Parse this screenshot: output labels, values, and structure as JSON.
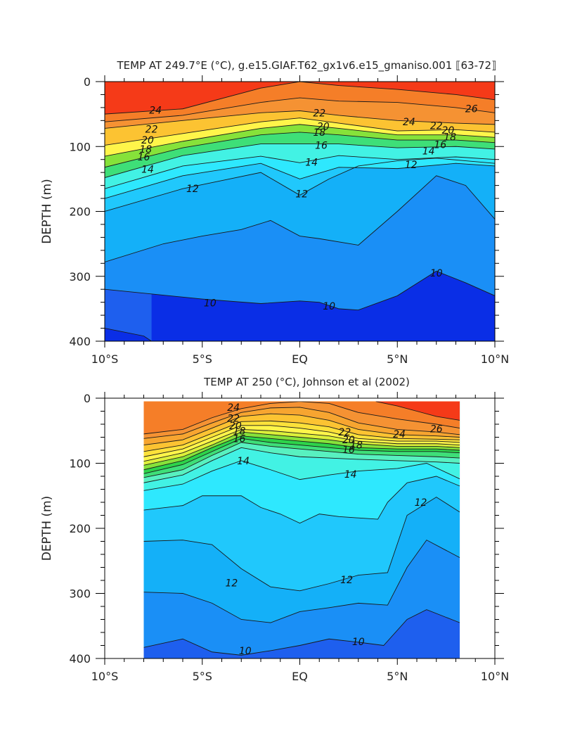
{
  "chart_data": [
    {
      "type": "contour",
      "title": "TEMP AT 249.7°E (°C), g.e15.GIAF.T62_gx1v6.e15_gmaniso.001 ⟦63-72⟧",
      "xlabel": "",
      "ylabel": "DEPTH (m)",
      "x_tick_labels": [
        "10°S",
        "5°S",
        "EQ",
        "5°N",
        "10°N"
      ],
      "x_ticks": [
        -10,
        -5,
        0,
        5,
        10
      ],
      "xlim": [
        -10,
        10
      ],
      "y_tick_labels": [
        "0",
        "100",
        "200",
        "300",
        "400"
      ],
      "y_ticks": [
        0,
        100,
        200,
        300,
        400
      ],
      "ylim": [
        400,
        0
      ],
      "data_extent_lat": [
        -10,
        10
      ],
      "contour_interval": 1,
      "contours": [
        {
          "level": 26,
          "lat": [
            -10,
            -6,
            -2,
            0,
            2,
            5,
            8,
            10
          ],
          "depth": [
            50,
            42,
            10,
            0,
            6,
            12,
            20,
            28
          ]
        },
        {
          "level": 25,
          "lat": [
            -10,
            -6,
            -2,
            0,
            2,
            5,
            8,
            10
          ],
          "depth": [
            62,
            52,
            32,
            25,
            30,
            32,
            40,
            48
          ]
        },
        {
          "level": 24,
          "lat": [
            -10,
            -6,
            -2,
            0,
            2,
            5,
            8,
            10
          ],
          "depth": [
            72,
            60,
            48,
            45,
            52,
            60,
            64,
            66
          ]
        },
        {
          "level": 22,
          "lat": [
            -10,
            -6,
            -2,
            0,
            2,
            5,
            8,
            10
          ],
          "depth": [
            98,
            80,
            62,
            56,
            64,
            76,
            74,
            78
          ]
        },
        {
          "level": 20,
          "lat": [
            -10,
            -6,
            -2,
            0,
            2,
            5,
            8,
            10
          ],
          "depth": [
            115,
            92,
            72,
            66,
            72,
            82,
            82,
            86
          ]
        },
        {
          "level": 18,
          "lat": [
            -10,
            -6,
            -2,
            0,
            2,
            5,
            8,
            10
          ],
          "depth": [
            132,
            102,
            82,
            78,
            82,
            90,
            90,
            94
          ]
        },
        {
          "level": 16,
          "lat": [
            -10,
            -6,
            -2,
            0,
            2,
            5,
            8,
            10
          ],
          "depth": [
            148,
            114,
            96,
            96,
            96,
            102,
            100,
            104
          ]
        },
        {
          "level": 14,
          "lat": [
            -10,
            -6,
            -2,
            0,
            2,
            5,
            8,
            10
          ],
          "depth": [
            165,
            130,
            115,
            125,
            114,
            120,
            116,
            120
          ]
        },
        {
          "level": 13,
          "lat": [
            -10,
            -6,
            -2,
            0,
            2,
            5,
            8,
            10
          ],
          "depth": [
            180,
            145,
            126,
            150,
            132,
            134,
            126,
            130
          ]
        },
        {
          "level": 12,
          "lat": [
            -10,
            -6,
            -2,
            0,
            1.5,
            3,
            5,
            7,
            8.5,
            10
          ],
          "depth": [
            200,
            165,
            140,
            175,
            150,
            130,
            122,
            118,
            122,
            126
          ]
        },
        {
          "level": 11,
          "lat": [
            -10,
            -7,
            -5,
            -3,
            -1.5,
            0,
            1,
            3,
            5,
            7,
            8.5,
            10
          ],
          "depth": [
            278,
            250,
            238,
            228,
            214,
            238,
            242,
            252,
            200,
            145,
            160,
            212
          ]
        },
        {
          "level": 10,
          "lat": [
            -10,
            -5,
            -2,
            0,
            1,
            2,
            3,
            5,
            7,
            8.5,
            10
          ],
          "depth": [
            320,
            335,
            342,
            338,
            340,
            350,
            352,
            330,
            292,
            310,
            330
          ]
        },
        {
          "level": 9,
          "lat": [
            -10,
            -8,
            -7.6
          ],
          "depth": [
            380,
            392,
            400
          ]
        }
      ],
      "contour_labels": [
        {
          "text": "24",
          "lat": -7.4,
          "depth": 44
        },
        {
          "text": "22",
          "lat": -7.6,
          "depth": 73
        },
        {
          "text": "20",
          "lat": -7.8,
          "depth": 90
        },
        {
          "text": "18",
          "lat": -7.9,
          "depth": 104
        },
        {
          "text": "16",
          "lat": -8.0,
          "depth": 116
        },
        {
          "text": "14",
          "lat": -7.8,
          "depth": 135
        },
        {
          "text": "12",
          "lat": -5.5,
          "depth": 165
        },
        {
          "text": "12",
          "lat": 0.1,
          "depth": 173
        },
        {
          "text": "14",
          "lat": 0.6,
          "depth": 124
        },
        {
          "text": "16",
          "lat": 1.1,
          "depth": 98
        },
        {
          "text": "18",
          "lat": 1.0,
          "depth": 78
        },
        {
          "text": "20",
          "lat": 1.2,
          "depth": 69
        },
        {
          "text": "22",
          "lat": 1.0,
          "depth": 48
        },
        {
          "text": "24",
          "lat": 5.6,
          "depth": 62
        },
        {
          "text": "22",
          "lat": 7.0,
          "depth": 68
        },
        {
          "text": "20",
          "lat": 7.6,
          "depth": 75
        },
        {
          "text": "18",
          "lat": 7.7,
          "depth": 85
        },
        {
          "text": "16",
          "lat": 7.2,
          "depth": 97
        },
        {
          "text": "14",
          "lat": 6.6,
          "depth": 107
        },
        {
          "text": "12",
          "lat": 5.7,
          "depth": 128
        },
        {
          "text": "26",
          "lat": 8.8,
          "depth": 42
        },
        {
          "text": "10",
          "lat": -4.6,
          "depth": 341
        },
        {
          "text": "10",
          "lat": 1.5,
          "depth": 346
        },
        {
          "text": "10",
          "lat": 7.0,
          "depth": 295
        }
      ]
    },
    {
      "type": "contour",
      "title": "TEMP AT 250 (°C), Johnson et al (2002)",
      "xlabel": "",
      "ylabel": "DEPTH (m)",
      "x_tick_labels": [
        "10°S",
        "5°S",
        "EQ",
        "5°N",
        "10°N"
      ],
      "x_ticks": [
        -10,
        -5,
        0,
        5,
        10
      ],
      "xlim": [
        -10,
        10
      ],
      "y_tick_labels": [
        "0",
        "100",
        "200",
        "300",
        "400"
      ],
      "y_ticks": [
        0,
        100,
        200,
        300,
        400
      ],
      "ylim": [
        400,
        0
      ],
      "data_extent_lat": [
        -8,
        8.2
      ],
      "data_extent_depth": [
        5,
        400
      ],
      "contour_interval": 1,
      "contours": [
        {
          "level": 26,
          "lat": [
            3.9,
            5,
            6,
            7,
            8.2
          ],
          "depth": [
            5,
            12,
            20,
            28,
            34
          ]
        },
        {
          "level": 25,
          "lat": [
            -8,
            -6,
            -4.5,
            -3,
            -1.5,
            0,
            1.5,
            3,
            5,
            7,
            8.2
          ],
          "depth": [
            55,
            48,
            30,
            16,
            8,
            5,
            8,
            22,
            32,
            40,
            46
          ]
        },
        {
          "level": 24,
          "lat": [
            -8,
            -6,
            -4.5,
            -3,
            -1.5,
            0,
            1.5,
            3,
            5,
            7,
            8.2
          ],
          "depth": [
            62,
            55,
            38,
            22,
            15,
            14,
            22,
            38,
            48,
            52,
            56
          ]
        },
        {
          "level": 23,
          "lat": [
            -8,
            -6,
            -4.5,
            -3,
            -1.5,
            0,
            1.5,
            3,
            5,
            7,
            8.2
          ],
          "depth": [
            72,
            64,
            46,
            28,
            24,
            26,
            34,
            48,
            56,
            58,
            60
          ]
        },
        {
          "level": 22,
          "lat": [
            -8,
            -6,
            -4.5,
            -3,
            -1.5,
            0,
            1.5,
            3,
            5,
            7,
            8.2
          ],
          "depth": [
            82,
            72,
            54,
            36,
            35,
            38,
            44,
            56,
            62,
            63,
            64
          ]
        },
        {
          "level": 21,
          "lat": [
            -8,
            -6,
            -4.5,
            -3,
            -1.5,
            0,
            1.5,
            3,
            5,
            7,
            8.2
          ],
          "depth": [
            90,
            78,
            60,
            42,
            42,
            46,
            52,
            62,
            66,
            66,
            68
          ]
        },
        {
          "level": 20,
          "lat": [
            -8,
            -6,
            -4.5,
            -3,
            -1.5,
            0,
            1.5,
            3,
            5,
            7,
            8.2
          ],
          "depth": [
            97,
            84,
            66,
            48,
            50,
            54,
            58,
            66,
            70,
            70,
            72
          ]
        },
        {
          "level": 19,
          "lat": [
            -8,
            -6,
            -4.5,
            -3,
            -1.5,
            0,
            1.5,
            3,
            5,
            7,
            8.2
          ],
          "depth": [
            103,
            90,
            72,
            52,
            56,
            60,
            64,
            70,
            74,
            74,
            76
          ]
        },
        {
          "level": 18,
          "lat": [
            -8,
            -6,
            -4.5,
            -3,
            -1.5,
            0,
            1.5,
            3,
            5,
            7,
            8.2
          ],
          "depth": [
            110,
            96,
            76,
            58,
            62,
            66,
            70,
            76,
            78,
            78,
            80
          ]
        },
        {
          "level": 17,
          "lat": [
            -8,
            -6,
            -4.5,
            -3,
            -1.5,
            0,
            1.5,
            3,
            5,
            7,
            8.2
          ],
          "depth": [
            116,
            102,
            82,
            62,
            68,
            72,
            76,
            80,
            82,
            82,
            84
          ]
        },
        {
          "level": 16,
          "lat": [
            -8,
            -6,
            -4.5,
            -3,
            -1.5,
            0,
            1.5,
            3,
            5,
            7,
            8.2
          ],
          "depth": [
            122,
            110,
            88,
            68,
            74,
            78,
            82,
            86,
            88,
            90,
            92
          ]
        },
        {
          "level": 15,
          "lat": [
            -8,
            -6,
            -4.5,
            -3,
            -1.5,
            0,
            1.5,
            3,
            5,
            7,
            8.2
          ],
          "depth": [
            130,
            118,
            96,
            76,
            84,
            90,
            92,
            94,
            96,
            98,
            100
          ]
        },
        {
          "level": 14,
          "lat": [
            -8,
            -6,
            -4.5,
            -3,
            -1.5,
            0,
            1.5,
            3,
            5,
            6.5,
            8.2
          ],
          "depth": [
            142,
            132,
            112,
            96,
            110,
            125,
            118,
            112,
            108,
            100,
            124
          ]
        },
        {
          "level": 13,
          "lat": [
            -8,
            -6,
            -5,
            -3,
            -2,
            -1,
            0,
            1,
            2,
            4,
            4.5,
            5.5,
            7,
            8.2
          ],
          "depth": [
            172,
            165,
            150,
            150,
            168,
            178,
            192,
            178,
            182,
            186,
            160,
            130,
            120,
            135
          ]
        },
        {
          "level": 12,
          "lat": [
            -8,
            -6,
            -4.5,
            -3,
            -1.5,
            0,
            1.5,
            3,
            4.5,
            5.5,
            7,
            8.2
          ],
          "depth": [
            220,
            218,
            225,
            262,
            290,
            296,
            285,
            272,
            268,
            180,
            152,
            175
          ]
        },
        {
          "level": 11,
          "lat": [
            -8,
            -6,
            -4.5,
            -3,
            -1.5,
            0,
            1.5,
            3,
            4.5,
            5.5,
            6.5,
            8.2
          ],
          "depth": [
            298,
            300,
            315,
            340,
            345,
            328,
            322,
            315,
            318,
            260,
            218,
            245
          ]
        },
        {
          "level": 10,
          "lat": [
            -8,
            -6,
            -4.5,
            -3,
            -1.5,
            0,
            1.5,
            3,
            4.3,
            5.5,
            6.5,
            8.2
          ],
          "depth": [
            383,
            370,
            390,
            395,
            388,
            380,
            370,
            375,
            380,
            340,
            325,
            345
          ]
        }
      ],
      "contour_labels": [
        {
          "text": "24",
          "lat": -3.4,
          "depth": 14
        },
        {
          "text": "22",
          "lat": -3.4,
          "depth": 31
        },
        {
          "text": "20",
          "lat": -3.3,
          "depth": 42
        },
        {
          "text": "18",
          "lat": -3.1,
          "depth": 50
        },
        {
          "text": "16",
          "lat": -3.1,
          "depth": 62
        },
        {
          "text": "14",
          "lat": -2.9,
          "depth": 96
        },
        {
          "text": "22",
          "lat": 2.3,
          "depth": 52
        },
        {
          "text": "20",
          "lat": 2.5,
          "depth": 64
        },
        {
          "text": "18",
          "lat": 2.9,
          "depth": 72
        },
        {
          "text": "16",
          "lat": 2.5,
          "depth": 79
        },
        {
          "text": "14",
          "lat": 2.6,
          "depth": 117
        },
        {
          "text": "24",
          "lat": 5.1,
          "depth": 55
        },
        {
          "text": "26",
          "lat": 7.0,
          "depth": 47
        },
        {
          "text": "12",
          "lat": 6.2,
          "depth": 160
        },
        {
          "text": "12",
          "lat": -3.5,
          "depth": 284
        },
        {
          "text": "12",
          "lat": 2.4,
          "depth": 279
        },
        {
          "text": "10",
          "lat": -2.8,
          "depth": 388
        },
        {
          "text": "10",
          "lat": 3.0,
          "depth": 374
        }
      ]
    }
  ]
}
